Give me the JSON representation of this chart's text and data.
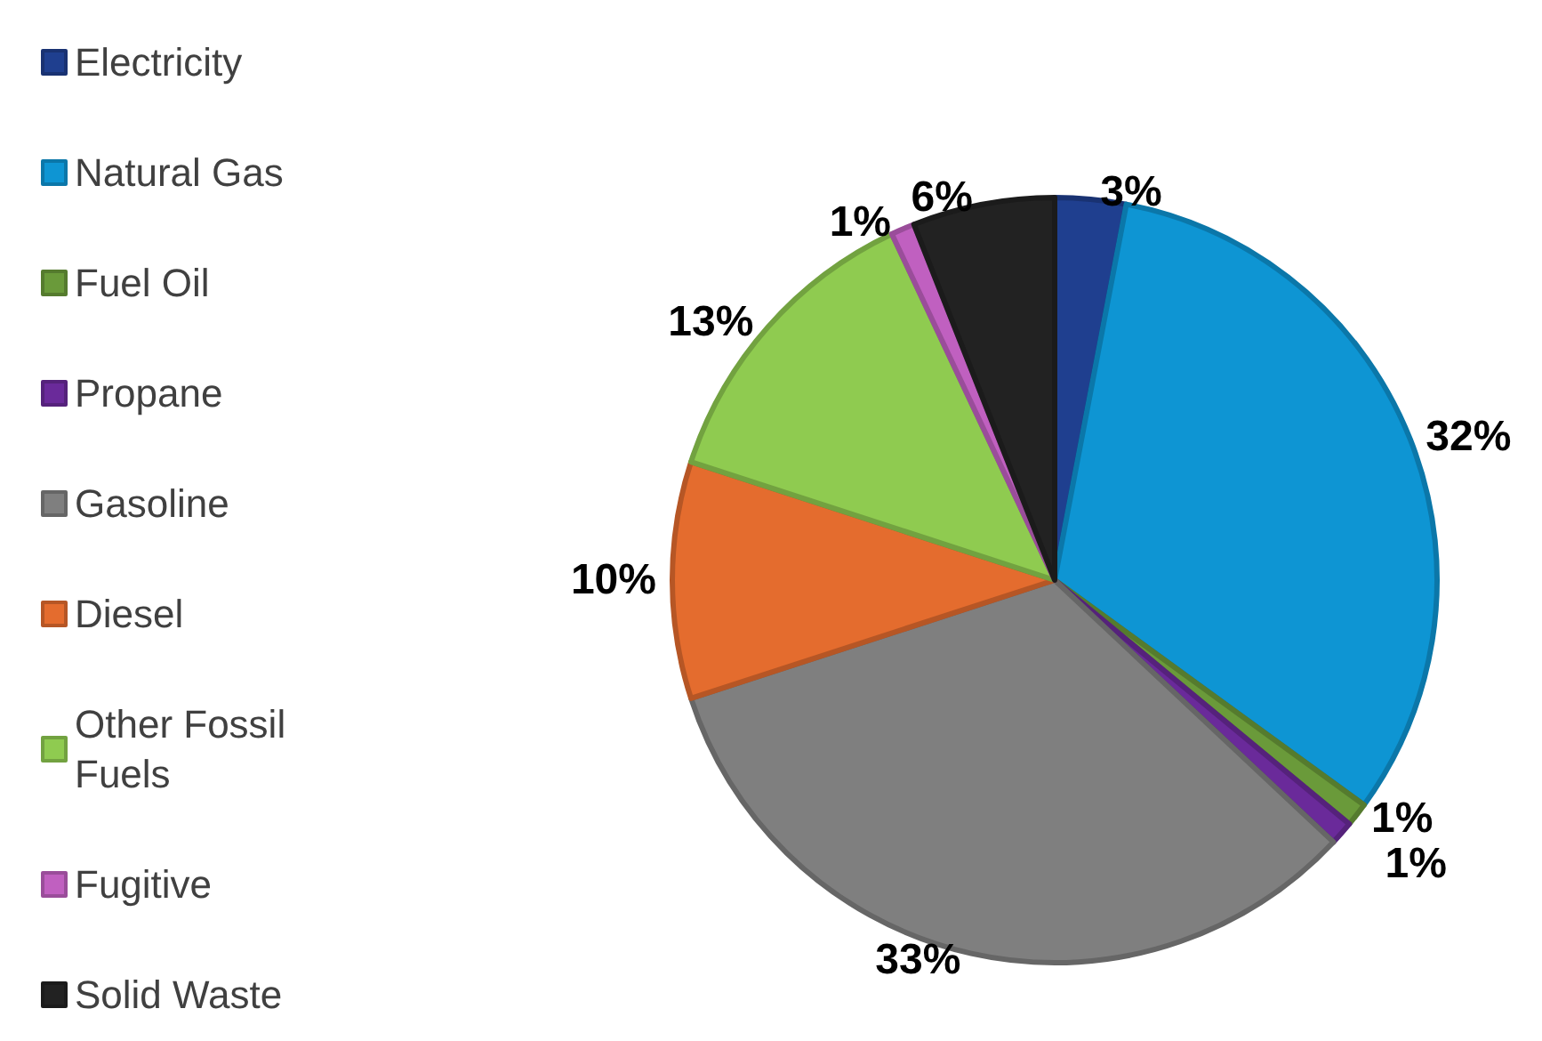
{
  "chart_data": {
    "type": "pie",
    "categories": [
      "Electricity",
      "Natural Gas",
      "Fuel Oil",
      "Propane",
      "Gasoline",
      "Diesel",
      "Other Fossil Fuels",
      "Fugitive",
      "Solid Waste"
    ],
    "values": [
      3,
      32,
      1,
      1,
      33,
      10,
      13,
      1,
      6
    ],
    "value_labels": [
      "3%",
      "32%",
      "1%",
      "1%",
      "33%",
      "10%",
      "13%",
      "1%",
      "6%"
    ],
    "colors": [
      "#1f3f8f",
      "#0e95d3",
      "#6a9a3a",
      "#6a2a9a",
      "#7f7f7f",
      "#e46c2e",
      "#8fcb50",
      "#c060c0",
      "#222222"
    ],
    "legend": "left"
  }
}
